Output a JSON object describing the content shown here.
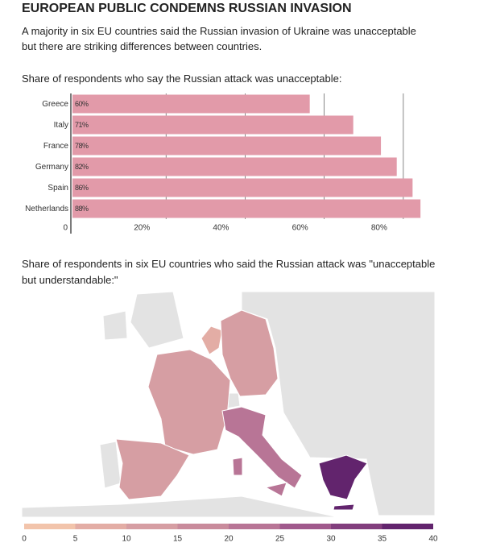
{
  "header": {
    "title": "EUROPEAN PUBLIC CONDEMNS RUSSIAN INVASION",
    "subtitle": "A majority in six EU countries said the Russian invasion of Ukraine was unacceptable but there are striking differences between countries."
  },
  "chart_data": [
    {
      "type": "bar",
      "orientation": "horizontal",
      "title": "Share of respondents who say the Russian attack was unacceptable:",
      "categories": [
        "Greece",
        "Italy",
        "France",
        "Germany",
        "Spain",
        "Netherlands"
      ],
      "values": [
        60,
        71,
        78,
        82,
        86,
        88
      ],
      "value_labels": [
        "60%",
        "71%",
        "78%",
        "82%",
        "86%",
        "88%"
      ],
      "color": "#e29aa9",
      "xlim": [
        0,
        90
      ],
      "xticks": [
        0,
        {
          "value": 20,
          "label": "20%"
        },
        {
          "value": 40,
          "label": "40%"
        },
        {
          "value": 60,
          "label": "60%"
        },
        {
          "value": 80,
          "label": "80%"
        }
      ],
      "grid": true
    },
    {
      "type": "choropleth",
      "title": "Share of respondents in six EU countries who said the Russian attack was \"unacceptable but understandable:\"",
      "values": [
        7,
        13,
        13,
        14,
        22,
        37
      ],
      "legend_ticks": [
        0,
        5,
        10,
        15,
        20,
        25,
        30,
        35,
        40
      ],
      "legend_colors": [
        "#f2c4ab",
        "#e3ada5",
        "#d69ea3",
        "#c98b9c",
        "#b87596",
        "#a0598c",
        "#823e7d",
        "#62246d"
      ]
    }
  ]
}
